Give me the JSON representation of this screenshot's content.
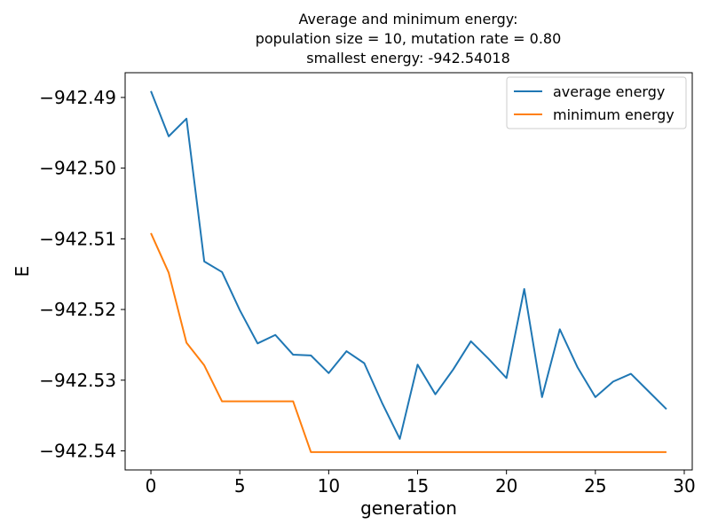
{
  "chart_data": {
    "type": "line",
    "title_lines": [
      "Average and minimum energy:",
      "population size = 10, mutation rate = 0.80",
      "smallest energy: -942.54018"
    ],
    "xlabel": "generation",
    "ylabel": "E",
    "xlim": [
      -1.45,
      30.45
    ],
    "ylim": [
      -942.5427,
      -942.4865
    ],
    "xticks": [
      0,
      5,
      10,
      15,
      20,
      25,
      30
    ],
    "xtick_labels": [
      "0",
      "5",
      "10",
      "15",
      "20",
      "25",
      "30"
    ],
    "yticks": [
      -942.49,
      -942.5,
      -942.51,
      -942.52,
      -942.53,
      -942.54
    ],
    "ytick_labels": [
      "−942.49",
      "−942.50",
      "−942.51",
      "−942.52",
      "−942.53",
      "−942.54"
    ],
    "grid": false,
    "legend_position": "top-right",
    "x": [
      0,
      1,
      2,
      3,
      4,
      5,
      6,
      7,
      8,
      9,
      10,
      11,
      12,
      13,
      14,
      15,
      16,
      17,
      18,
      19,
      20,
      21,
      22,
      23,
      24,
      25,
      26,
      27,
      28,
      29
    ],
    "series": [
      {
        "name": "average energy",
        "color": "#1f77b4",
        "values": [
          -942.4891,
          -942.4955,
          -942.493,
          -942.5132,
          -942.5147,
          -942.5201,
          -942.5248,
          -942.5236,
          -942.5264,
          -942.5265,
          -942.529,
          -942.5259,
          -942.5276,
          -942.5332,
          -942.5383,
          -942.5278,
          -942.532,
          -942.5285,
          -942.5245,
          -942.527,
          -942.5297,
          -942.5171,
          -942.5324,
          -942.5228,
          -942.5282,
          -942.5324,
          -942.5302,
          -942.5291,
          -942.5316,
          -942.5341
        ]
      },
      {
        "name": "minimum energy",
        "color": "#ff7f0e",
        "values": [
          -942.5092,
          -942.5148,
          -942.5247,
          -942.5279,
          -942.533,
          -942.533,
          -942.533,
          -942.533,
          -942.533,
          -942.54018,
          -942.54018,
          -942.54018,
          -942.54018,
          -942.54018,
          -942.54018,
          -942.54018,
          -942.54018,
          -942.54018,
          -942.54018,
          -942.54018,
          -942.54018,
          -942.54018,
          -942.54018,
          -942.54018,
          -942.54018,
          -942.54018,
          -942.54018,
          -942.54018,
          -942.54018,
          -942.54018
        ]
      }
    ]
  }
}
